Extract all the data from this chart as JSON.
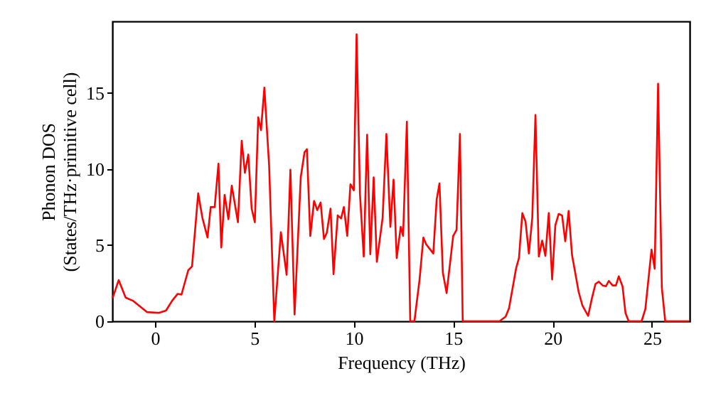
{
  "chart_data": {
    "type": "line",
    "xlabel": "Frequency (THz)",
    "ylabel": "Phonon DOS\n(States/THz·primitive cell)",
    "x": [
      -2.14,
      -1.83,
      -1.48,
      -1.12,
      -0.4,
      0.19,
      0.55,
      0.86,
      1.14,
      1.33,
      1.67,
      1.86,
      2.17,
      2.38,
      2.64,
      2.8,
      3.0,
      3.19,
      3.33,
      3.5,
      3.69,
      3.86,
      4.17,
      4.36,
      4.52,
      4.69,
      4.86,
      5.02,
      5.19,
      5.33,
      5.5,
      5.74,
      6.0,
      6.33,
      6.62,
      6.81,
      7.02,
      7.33,
      7.52,
      7.64,
      7.81,
      8.0,
      8.16,
      8.33,
      8.5,
      8.64,
      8.83,
      8.98,
      9.19,
      9.36,
      9.5,
      9.67,
      9.83,
      10.0,
      10.14,
      10.31,
      10.5,
      10.67,
      10.83,
      11.0,
      11.16,
      11.45,
      11.64,
      11.84,
      12.0,
      12.16,
      12.36,
      12.48,
      12.67,
      12.84,
      13.05,
      13.31,
      13.5,
      13.64,
      14.0,
      14.17,
      14.31,
      14.48,
      14.67,
      15.0,
      15.17,
      15.34,
      15.48,
      17.33,
      17.64,
      17.81,
      17.98,
      18.17,
      18.31,
      18.48,
      18.64,
      18.81,
      18.98,
      19.14,
      19.31,
      19.48,
      19.64,
      19.81,
      19.98,
      20.14,
      20.31,
      20.48,
      20.64,
      20.81,
      20.98,
      21.14,
      21.31,
      21.5,
      21.79,
      21.98,
      22.16,
      22.33,
      22.52,
      22.69,
      22.83,
      23.02,
      23.19,
      23.33,
      23.52,
      23.67,
      23.83,
      24.48,
      24.67,
      24.98,
      25.14,
      25.31,
      25.5,
      25.67,
      26.86
    ],
    "series": [
      {
        "color": "#ff0000",
        "values": [
          1.5,
          2.7,
          1.55,
          1.35,
          0.6,
          0.55,
          0.7,
          1.35,
          1.8,
          1.75,
          3.35,
          3.6,
          8.4,
          6.8,
          5.5,
          7.5,
          7.5,
          10.35,
          4.85,
          8.3,
          6.7,
          8.9,
          6.5,
          11.85,
          9.75,
          10.95,
          7.4,
          6.5,
          13.4,
          12.55,
          15.35,
          10.2,
          0,
          5.85,
          3.05,
          9.95,
          0.45,
          9.45,
          11.1,
          11.3,
          5.6,
          7.9,
          7.3,
          7.8,
          5.4,
          5.8,
          7.4,
          3.1,
          6.95,
          6.75,
          7.5,
          5.6,
          9.0,
          8.6,
          18.85,
          8.35,
          4.25,
          12.25,
          4.4,
          9.45,
          3.9,
          6.8,
          12.3,
          6.2,
          9.3,
          4.15,
          6.2,
          5.6,
          13.1,
          0,
          0,
          2.75,
          5.5,
          5.05,
          4.45,
          8.0,
          9.05,
          3.2,
          1.85,
          5.6,
          6.0,
          12.3,
          0,
          0,
          0.3,
          0.85,
          2.1,
          3.5,
          4.15,
          7.1,
          6.55,
          4.45,
          6.8,
          13.55,
          4.25,
          5.3,
          4.3,
          7.1,
          2.75,
          6.3,
          7.05,
          6.95,
          5.25,
          7.25,
          4.35,
          3.2,
          1.95,
          1.05,
          0.35,
          1.5,
          2.45,
          2.6,
          2.35,
          2.3,
          2.65,
          2.35,
          2.35,
          2.95,
          2.3,
          0.55,
          0,
          0,
          0.8,
          4.7,
          3.45,
          15.6,
          2.2,
          0,
          0
        ]
      }
    ],
    "xlim": [
      -2.15,
      26.9
    ],
    "ylim": [
      0,
      19.7
    ],
    "xticks": [
      0,
      5,
      10,
      15,
      20,
      25
    ],
    "yticks": [
      0,
      5,
      10,
      15
    ],
    "grid": false,
    "marker": "none",
    "line_style": "solid"
  }
}
